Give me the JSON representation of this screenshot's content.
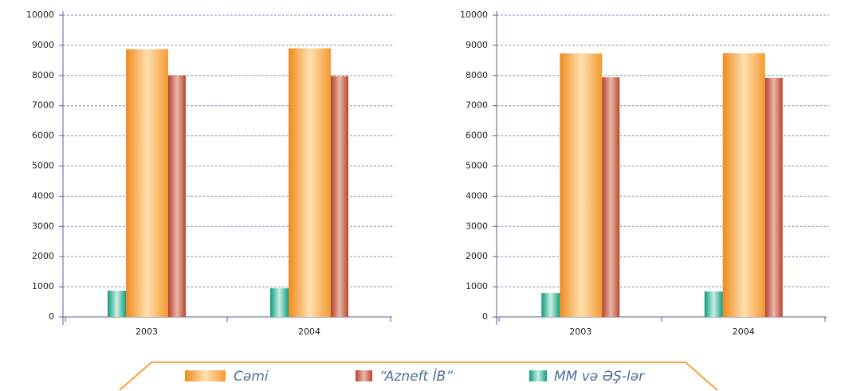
{
  "chart_data": [
    {
      "type": "bar",
      "categories": [
        "2003",
        "2004"
      ],
      "series": [
        {
          "name": "Cəmi",
          "color": "#f7a23c",
          "values": [
            8870,
            8900
          ]
        },
        {
          "name": "“Azneft İB”",
          "color": "#c0503c",
          "values": [
            8000,
            7980
          ]
        },
        {
          "name": "MM və ƏŞ-lər",
          "color": "#1fa88c",
          "values": [
            870,
            950
          ]
        }
      ],
      "ylim": [
        0,
        10000
      ],
      "yticks": [
        0,
        1000,
        2000,
        3000,
        4000,
        5000,
        6000,
        7000,
        8000,
        9000,
        10000
      ],
      "grid": true
    },
    {
      "type": "bar",
      "categories": [
        "2003",
        "2004"
      ],
      "series": [
        {
          "color": "#f7a23c",
          "values": [
            8730,
            8740
          ]
        },
        {
          "color": "#c0503c",
          "values": [
            7940,
            7920
          ]
        },
        {
          "color": "#1fa88c",
          "values": [
            790,
            845
          ]
        }
      ],
      "ylim": [
        0,
        10000
      ],
      "yticks": [
        0,
        1000,
        2000,
        3000,
        4000,
        5000,
        6000,
        7000,
        8000,
        9000,
        10000
      ],
      "grid": true
    }
  ]
}
